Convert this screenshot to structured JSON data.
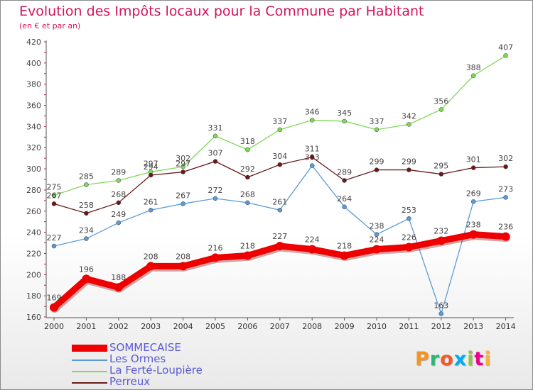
{
  "header": {
    "title": "Evolution des Impôts locaux pour la Commune par Habitant",
    "subtitle": "(en € et par an)"
  },
  "brand": {
    "text": "Proxiti",
    "colors": [
      "#f7941d",
      "#2bb673",
      "#f15a24",
      "#00aeef",
      "#8dc63f",
      "#ec008c",
      "#fbb040"
    ]
  },
  "chart_data": {
    "type": "line",
    "title": "Evolution des Impôts locaux pour la Commune par Habitant",
    "subtitle": "(en € et par an)",
    "categories": [
      "2000",
      "2001",
      "2002",
      "2003",
      "2004",
      "2005",
      "2006",
      "2007",
      "2008",
      "2009",
      "2010",
      "2011",
      "2012",
      "2013",
      "2014"
    ],
    "ylim": [
      160,
      420
    ],
    "yticks": [
      160,
      180,
      200,
      220,
      240,
      260,
      280,
      300,
      320,
      340,
      360,
      380,
      400,
      420
    ],
    "grid": false,
    "legend_position": "bottom-left",
    "series": [
      {
        "name": "SOMMECAISE",
        "color": "#ee0000",
        "emphasis": true,
        "values": [
          169,
          196,
          188,
          208,
          208,
          216,
          218,
          227,
          224,
          218,
          224,
          226,
          232,
          238,
          236
        ],
        "labels": [
          "169",
          "196",
          "188",
          "208",
          "208",
          "216",
          "218",
          "227",
          "224",
          "218",
          "224",
          "226",
          "232",
          "238",
          "236"
        ]
      },
      {
        "name": "Les Ormes",
        "color": "#5b9bd5",
        "values": [
          227,
          234,
          249,
          261,
          267,
          272,
          268,
          261,
          303,
          264,
          238,
          253,
          163,
          269,
          273
        ],
        "labels": [
          "227",
          "234",
          "249",
          "261",
          "267",
          "272",
          "268",
          "261",
          "303",
          "264",
          "238",
          "253",
          "163",
          "269",
          "273"
        ]
      },
      {
        "name": "La Ferté-Loupière",
        "color": "#7ed957",
        "values": [
          275,
          285,
          289,
          297,
          302,
          331,
          318,
          337,
          346,
          345,
          337,
          342,
          356,
          388,
          407
        ],
        "labels": [
          "275",
          "285",
          "289",
          "297",
          "302",
          "331",
          "318",
          "337",
          "346",
          "345",
          "337",
          "342",
          "356",
          "388",
          "407"
        ]
      },
      {
        "name": "Perreux",
        "color": "#6b1a1a",
        "values": [
          267,
          258,
          268,
          294,
          297,
          307,
          292,
          304,
          311,
          289,
          299,
          299,
          295,
          301,
          302
        ],
        "labels": [
          "267",
          "258",
          "268",
          "294",
          "297",
          "307",
          "292",
          "304",
          "311",
          "289",
          "299",
          "299",
          "295",
          "301",
          "302"
        ]
      }
    ]
  }
}
